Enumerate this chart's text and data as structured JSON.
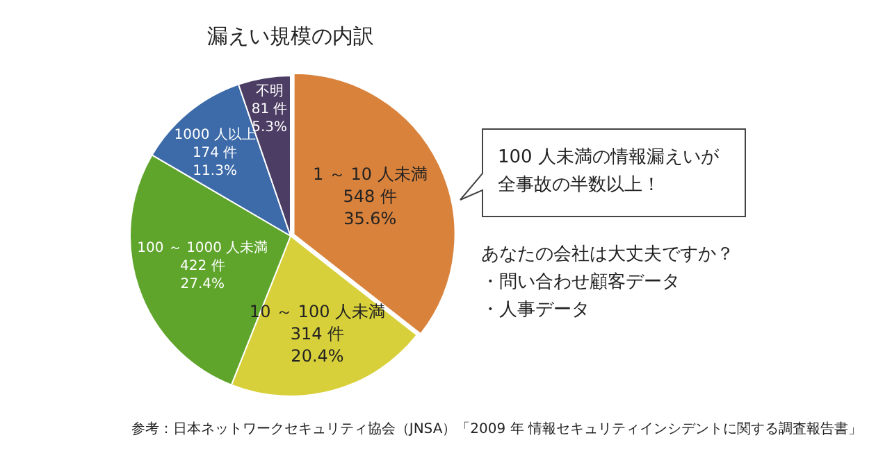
{
  "chart_data": {
    "type": "pie",
    "title": "漏えい規模の内訳",
    "categories": [
      "1 ～ 10 人未満",
      "10 ～ 100 人未満",
      "100 ～ 1000 人未満",
      "1000 人以上",
      "不明"
    ],
    "values": [
      548,
      314,
      422,
      174,
      81
    ],
    "value_labels": [
      "548 件\n35.6%",
      "314 件\n20.4%",
      "422 件\n27.4%",
      "174 件\n11.3%",
      "81 件\n5.3%"
    ],
    "colors": [
      "#d9823c",
      "#d8d03a",
      "#5fa52c",
      "#3d6aa9",
      "#4b3d63"
    ],
    "legend": false,
    "annotations": [
      "100 人未満の情報漏えいが",
      "全事故の半数以上！",
      "あなたの会社は大丈夫ですか？",
      "・問い合わせ顧客データ",
      "・人事データ",
      "参考：日本ネットワークセキュリティ協会（JNSA）「2009 年 情報セキュリティインシデントに関する調査報告書」"
    ]
  }
}
